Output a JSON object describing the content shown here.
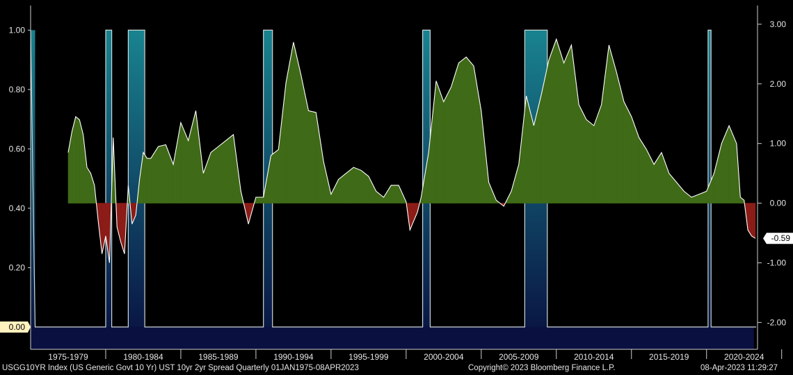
{
  "footer": {
    "security": "USGG10YR Index (US Generic Govt 10 Yr) UST 10yr 2yr Spread  Quarterly 01JAN1975-08APR2023",
    "copyright": "Copyright© 2023 Bloomberg Finance L.P.",
    "timestamp": "08-Apr-2023 11:29:27"
  },
  "colors": {
    "background": "#000000",
    "positive_fill": "#3f6a17",
    "negative_fill": "#8c1c17",
    "spread_line": "#ffffff",
    "recession_top": "#1a8a96",
    "recession_bottom": "#0a1848",
    "baseline_band": "#0a1040",
    "last_value_box": "#ffffff",
    "left_value_box": "#fff2bf"
  },
  "chart_data": {
    "type": "area",
    "title": "",
    "x_tick_labels": [
      "1975-1979",
      "1980-1984",
      "1985-1989",
      "1990-1994",
      "1995-1999",
      "2000-2004",
      "2005-2009",
      "2010-2014",
      "2015-2019",
      "2020-2024"
    ],
    "xlim": [
      1975.0,
      2023.3
    ],
    "left_axis": {
      "ticks": [
        "1.00",
        "0.80",
        "0.60",
        "0.40",
        "0.20",
        "0.00"
      ],
      "ylim": [
        -0.075,
        1.05
      ]
    },
    "right_axis": {
      "ticks": [
        "3.00",
        "2.00",
        "1.00",
        "0.00",
        "-1.00",
        "-2.00"
      ],
      "ylim": [
        -2.45,
        3.15
      ]
    },
    "last_value_label": "-0.59",
    "left_value_label": "0.00",
    "series": [
      {
        "name": "Recession indicator",
        "axis": "left",
        "x": [
          1975.0,
          1975.3,
          1980.0,
          1980.0,
          1980.4,
          1980.4,
          1981.5,
          1981.5,
          1982.6,
          1982.6,
          1990.5,
          1990.5,
          1991.1,
          1991.1,
          2001.1,
          2001.1,
          2001.6,
          2001.6,
          2007.9,
          2007.9,
          2009.4,
          2009.4,
          2020.1,
          2020.1,
          2020.3,
          2020.3,
          2023.3
        ],
        "values": [
          1,
          0,
          0,
          1,
          1,
          0,
          0,
          1,
          1,
          0,
          0,
          1,
          1,
          0,
          0,
          1,
          1,
          0,
          0,
          1,
          1,
          0,
          0,
          1,
          1,
          0,
          0
        ]
      },
      {
        "name": "UST 10yr 2yr Spread",
        "axis": "right",
        "x": [
          1977.5,
          1977.75,
          1978.0,
          1978.25,
          1978.5,
          1978.75,
          1979.0,
          1979.25,
          1979.5,
          1979.75,
          1980.0,
          1980.25,
          1980.5,
          1980.75,
          1981.0,
          1981.25,
          1981.5,
          1981.75,
          1982.0,
          1982.25,
          1982.5,
          1982.75,
          1983.0,
          1983.5,
          1984.0,
          1984.5,
          1985.0,
          1985.5,
          1986.0,
          1986.5,
          1987.0,
          1987.5,
          1988.0,
          1988.5,
          1989.0,
          1989.5,
          1990.0,
          1990.5,
          1991.0,
          1991.5,
          1992.0,
          1992.5,
          1993.0,
          1993.5,
          1994.0,
          1994.5,
          1995.0,
          1995.5,
          1996.0,
          1996.5,
          1997.0,
          1997.5,
          1998.0,
          1998.5,
          1999.0,
          1999.5,
          2000.0,
          2000.25,
          2000.5,
          2000.75,
          2001.0,
          2001.5,
          2002.0,
          2002.5,
          2003.0,
          2003.5,
          2004.0,
          2004.5,
          2005.0,
          2005.5,
          2006.0,
          2006.5,
          2007.0,
          2007.5,
          2008.0,
          2008.5,
          2009.0,
          2009.5,
          2010.0,
          2010.5,
          2011.0,
          2011.5,
          2012.0,
          2012.5,
          2013.0,
          2013.5,
          2014.0,
          2014.5,
          2015.0,
          2015.5,
          2016.0,
          2016.5,
          2017.0,
          2017.5,
          2018.0,
          2018.5,
          2019.0,
          2019.5,
          2020.0,
          2020.5,
          2021.0,
          2021.5,
          2022.0,
          2022.25,
          2022.5,
          2022.75,
          2023.0,
          2023.25
        ],
        "values": [
          0.85,
          1.2,
          1.45,
          1.4,
          1.15,
          0.6,
          0.5,
          0.3,
          -0.3,
          -0.85,
          -0.55,
          -1.0,
          1.1,
          -0.4,
          -0.65,
          -0.85,
          0.3,
          -0.35,
          -0.2,
          0.4,
          0.85,
          0.75,
          0.75,
          0.95,
          0.98,
          0.65,
          1.35,
          1.05,
          1.55,
          0.5,
          0.85,
          0.95,
          1.05,
          1.15,
          0.2,
          -0.35,
          0.1,
          0.1,
          0.8,
          0.9,
          2.02,
          2.7,
          2.15,
          1.55,
          1.52,
          0.7,
          0.15,
          0.4,
          0.5,
          0.6,
          0.55,
          0.45,
          0.2,
          0.1,
          0.3,
          0.3,
          0.02,
          -0.45,
          -0.3,
          -0.15,
          0.1,
          0.85,
          2.05,
          1.7,
          1.95,
          2.35,
          2.45,
          2.3,
          1.55,
          0.35,
          0.05,
          -0.05,
          0.2,
          0.65,
          1.8,
          1.3,
          1.82,
          2.4,
          2.75,
          2.35,
          2.65,
          1.65,
          1.4,
          1.3,
          1.65,
          2.65,
          2.2,
          1.7,
          1.45,
          1.1,
          0.9,
          0.65,
          0.85,
          0.5,
          0.35,
          0.2,
          0.1,
          0.15,
          0.2,
          0.5,
          1.0,
          1.3,
          1.0,
          0.1,
          0.05,
          -0.45,
          -0.55,
          -0.59
        ]
      }
    ]
  }
}
